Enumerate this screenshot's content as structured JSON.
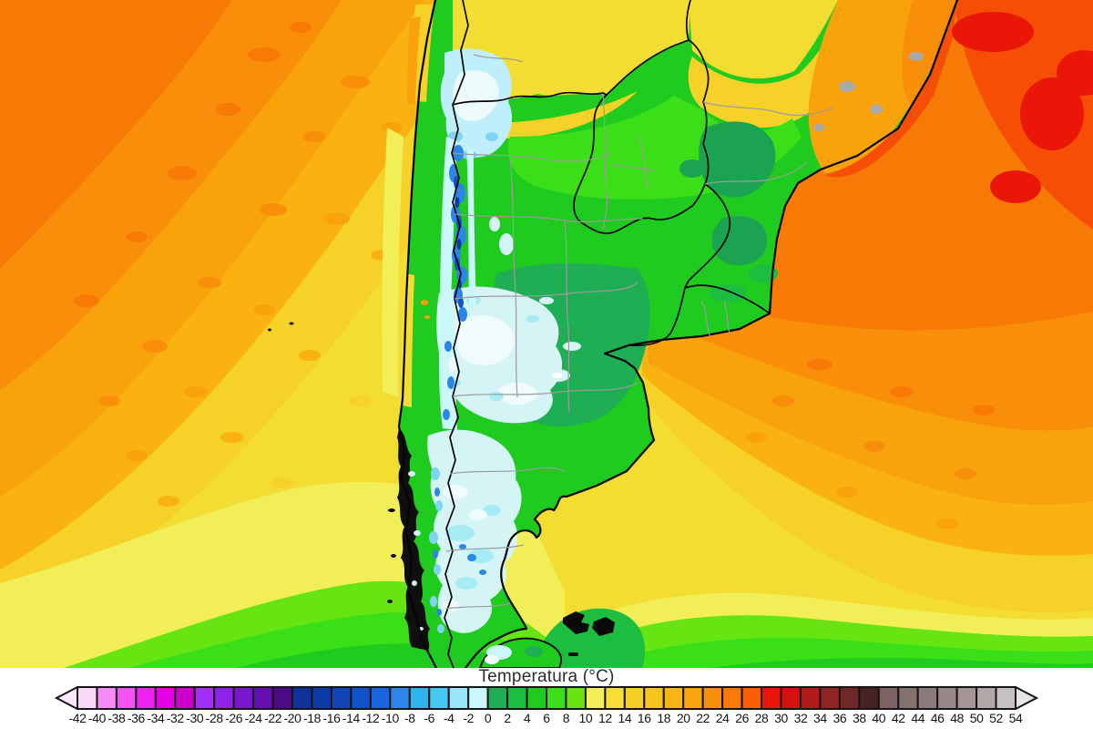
{
  "title": {
    "text": "Temperatura (°C)"
  },
  "legend": {
    "ticks": [
      "-42",
      "-40",
      "-38",
      "-36",
      "-34",
      "-32",
      "-30",
      "-28",
      "-26",
      "-24",
      "-22",
      "-20",
      "-18",
      "-16",
      "-14",
      "-12",
      "-10",
      "-8",
      "-6",
      "-4",
      "-2",
      "0",
      "2",
      "4",
      "6",
      "8",
      "10",
      "12",
      "14",
      "16",
      "18",
      "20",
      "22",
      "24",
      "26",
      "28",
      "30",
      "32",
      "34",
      "36",
      "38",
      "40",
      "42",
      "44",
      "46",
      "48",
      "50",
      "52",
      "54"
    ],
    "cell_colors": [
      "#f8d7f8",
      "#f88af8",
      "#f554f5",
      "#ef22ef",
      "#e300e3",
      "#ca00ca",
      "#a32ef7",
      "#8e23e8",
      "#7a16cc",
      "#6610b2",
      "#4c0a86",
      "#10329b",
      "#0d3ba6",
      "#1046b8",
      "#1254c8",
      "#1a66dc",
      "#2b86e8",
      "#2fb3ef",
      "#46c8f0",
      "#9ae4f7",
      "#c9f7fa",
      "#1fae54",
      "#1dbd3f",
      "#1ecb1e",
      "#3bdf17",
      "#66e512",
      "#f2ef5b",
      "#f5de37",
      "#f6d02a",
      "#f8c41d",
      "#f9b513",
      "#f9a50e",
      "#f98e0a",
      "#f97907",
      "#f75e05",
      "#ea1709",
      "#d41010",
      "#b31b1b",
      "#8f2424",
      "#6f2727",
      "#472222",
      "#7d6464",
      "#857070",
      "#8d7b7b",
      "#988888",
      "#a49595",
      "#b2a6a6",
      "#c7c2c2"
    ],
    "arrow_left_color": "#fbe6fb",
    "arrow_right_color": "#e8e5e5",
    "border_color": "#151515"
  },
  "map": {
    "palette": {
      "ocean_hot_ne": "#ea1709",
      "ocean_warm_orange": "#f87a06",
      "ocean_orange": "#f98e0a",
      "ocean_gold": "#f6d128",
      "ocean_yellow": "#f4dd33",
      "ocean_pale_yellow": "#f1ee58",
      "ocean_cool_green": "#3bdf17",
      "land_green": "#1ecb1e",
      "land_teal_pampas": "#1fae54",
      "cold_light_cyan": "#d5f4f6",
      "cold_white": "#effbfc",
      "andes_blue": "#2b86e8",
      "andes_dark_blue": "#0d3ba6",
      "border_country": "#050505",
      "border_province": "#9c9c9c"
    }
  }
}
